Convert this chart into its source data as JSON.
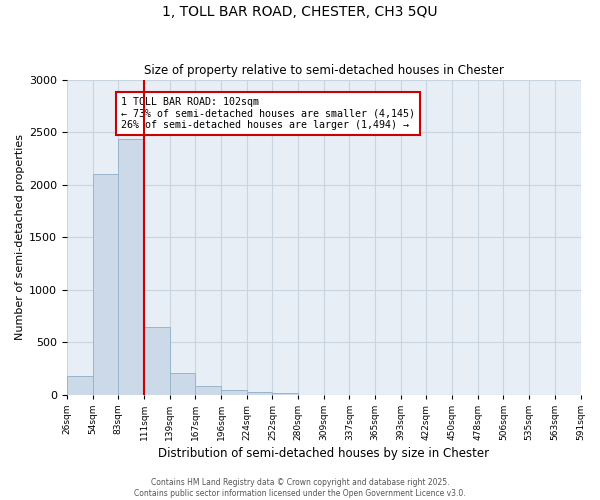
{
  "title_line1": "1, TOLL BAR ROAD, CHESTER, CH3 5QU",
  "title_line2": "Size of property relative to semi-detached houses in Chester",
  "xlabel": "Distribution of semi-detached houses by size in Chester",
  "ylabel": "Number of semi-detached properties",
  "bar_values": [
    175,
    2100,
    2430,
    640,
    210,
    80,
    45,
    25,
    15,
    0,
    0,
    0,
    0,
    0,
    0,
    0,
    0,
    0,
    0,
    0
  ],
  "categories": [
    "26sqm",
    "54sqm",
    "83sqm",
    "111sqm",
    "139sqm",
    "167sqm",
    "196sqm",
    "224sqm",
    "252sqm",
    "280sqm",
    "309sqm",
    "337sqm",
    "365sqm",
    "393sqm",
    "422sqm",
    "450sqm",
    "478sqm",
    "506sqm",
    "535sqm",
    "563sqm",
    "591sqm"
  ],
  "bar_color": "#ccd9e8",
  "bar_edge_color": "#9ab4cc",
  "vline_color": "#cc0000",
  "vline_position": 2.5,
  "ylim": [
    0,
    3000
  ],
  "yticks": [
    0,
    500,
    1000,
    1500,
    2000,
    2500,
    3000
  ],
  "grid_color": "#c8d4e0",
  "background_color": "#e8eef5",
  "annotation_title": "1 TOLL BAR ROAD: 102sqm",
  "annotation_line2": "← 73% of semi-detached houses are smaller (4,145)",
  "annotation_line3": "26% of semi-detached houses are larger (1,494) →",
  "annotation_box_color": "#cc0000",
  "footer_line1": "Contains HM Land Registry data © Crown copyright and database right 2025.",
  "footer_line2": "Contains public sector information licensed under the Open Government Licence v3.0."
}
